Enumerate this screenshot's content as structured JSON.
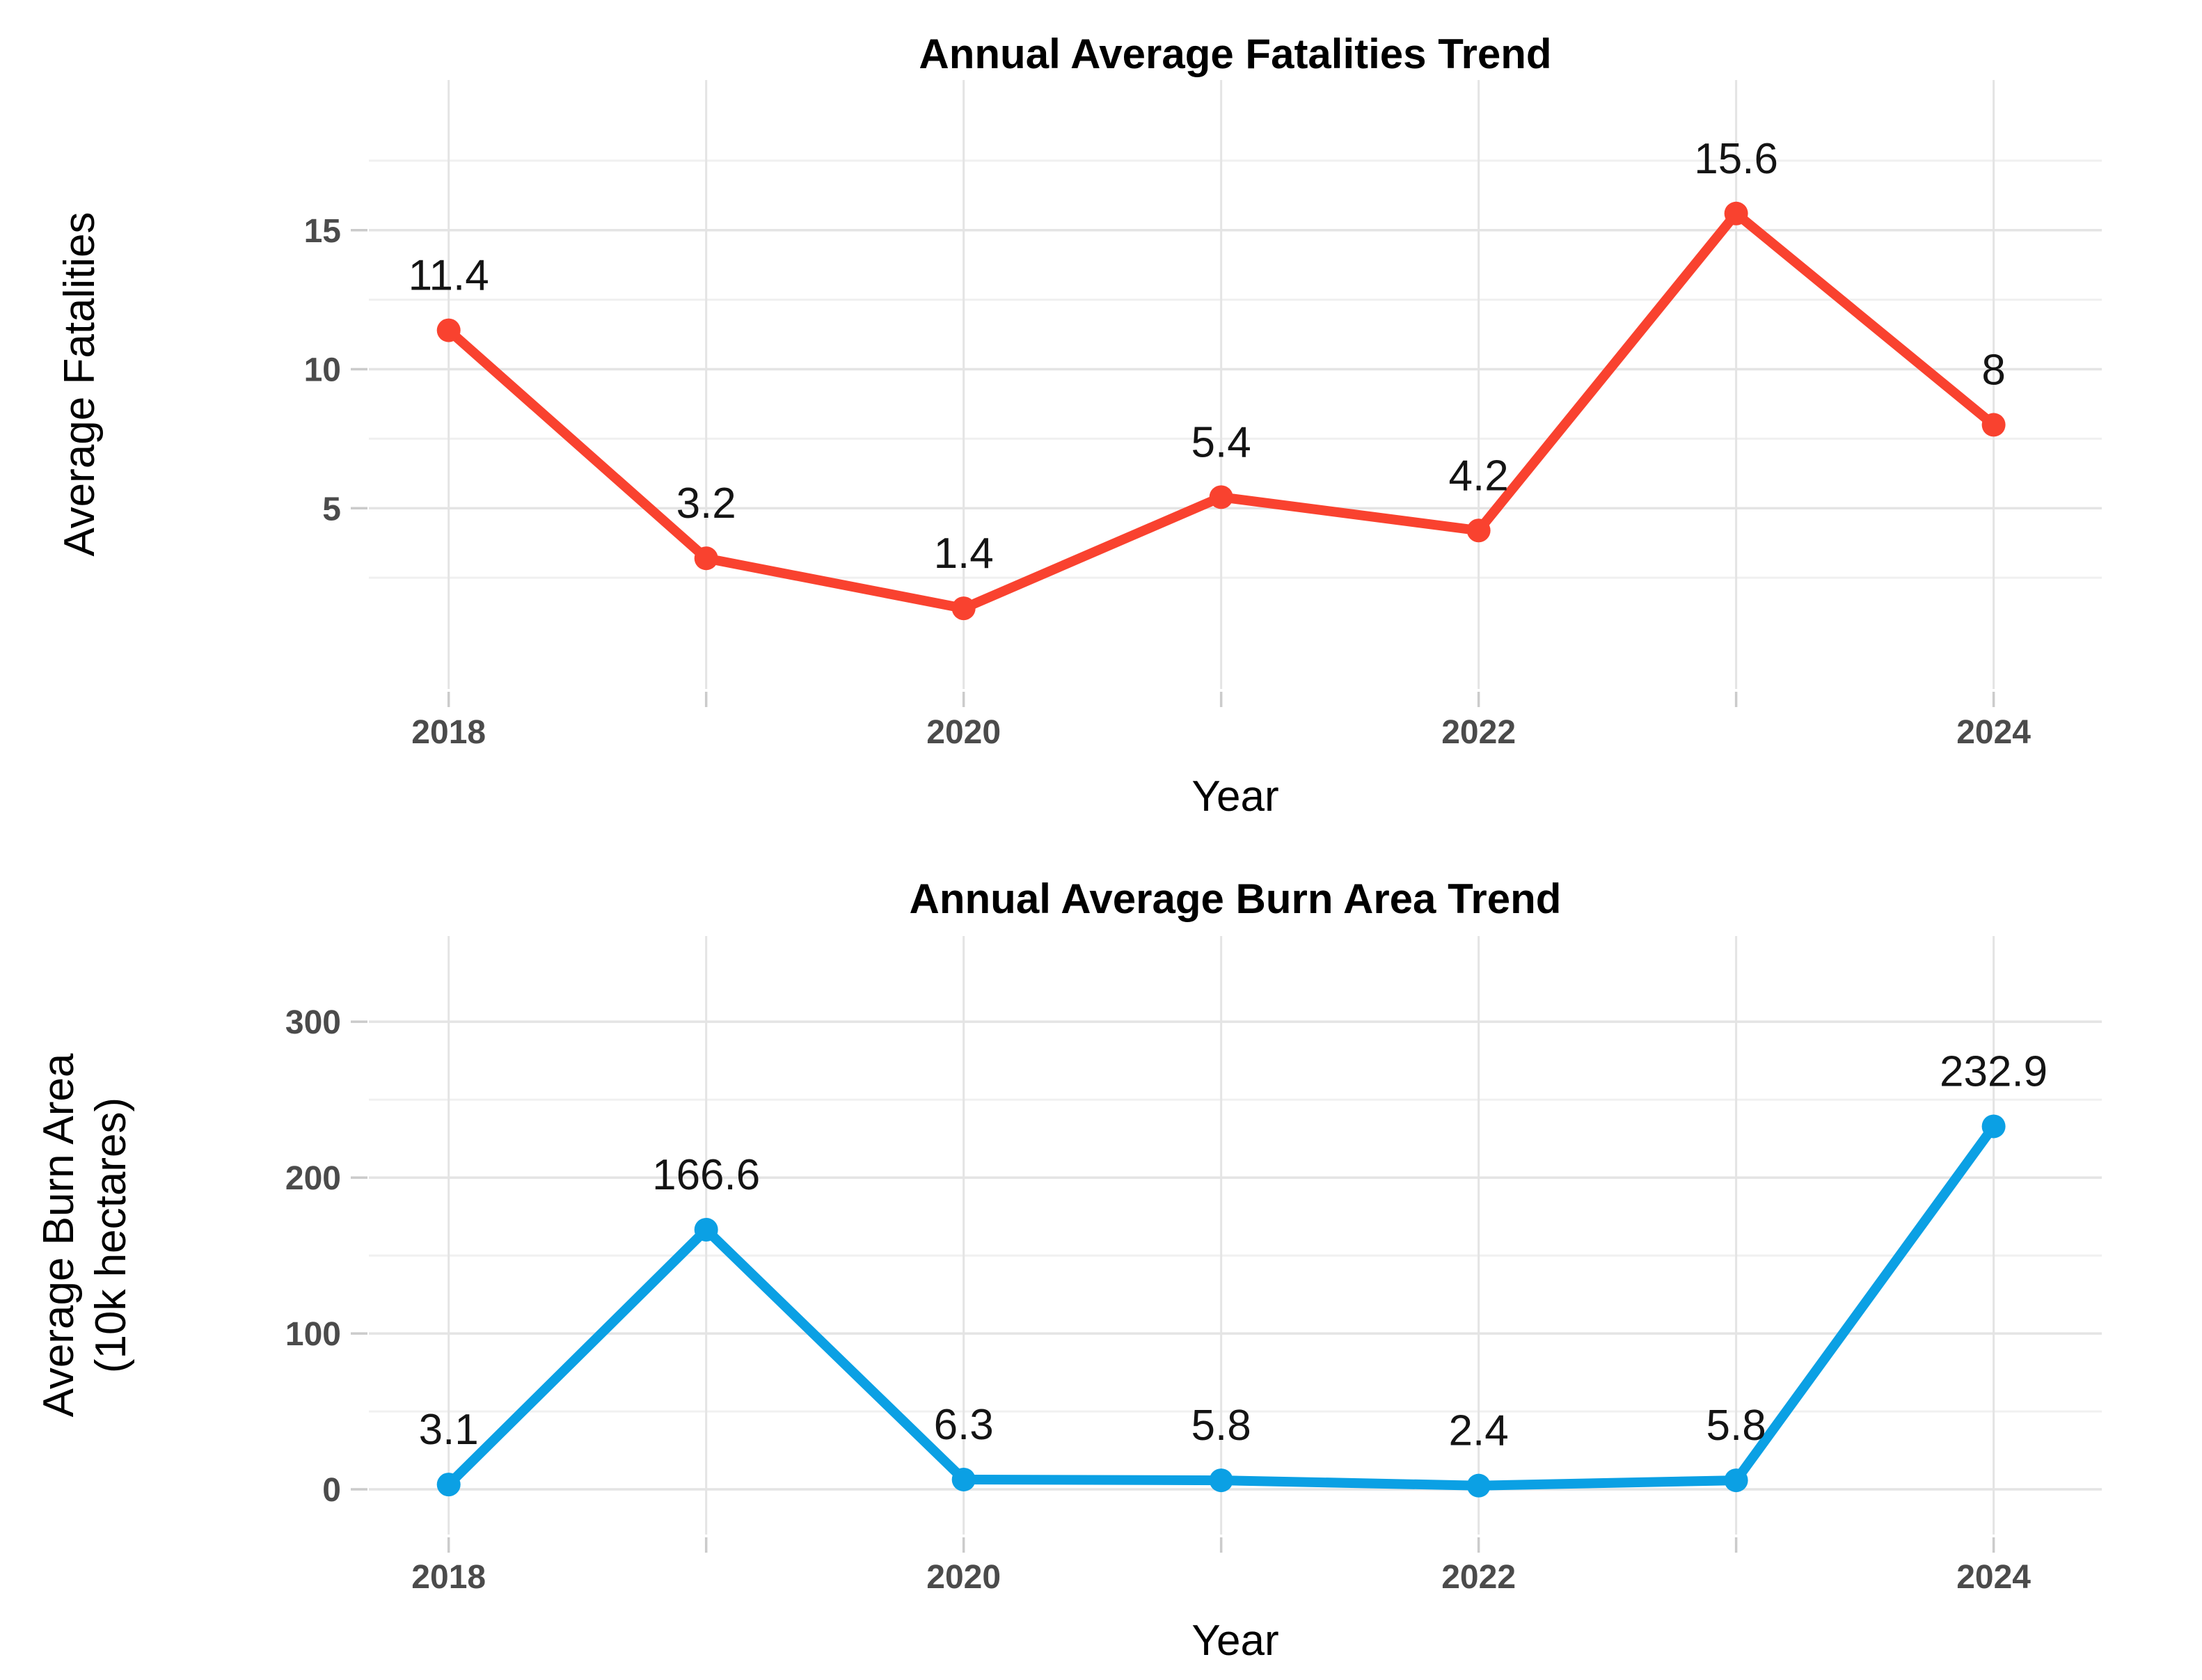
{
  "figure": {
    "background": "#FFFFFF",
    "grid_major_color": "#E4E4E4",
    "grid_minor_color": "#F0F0F0",
    "axis_tick_color": "#CBCBCB",
    "tick_label_color": "#4B4B4B",
    "data_label_color": "#141414"
  },
  "chart_data": [
    {
      "type": "line",
      "id": "fatalities",
      "title": "Annual Average Fatalities Trend",
      "xlabel": "Year",
      "ylabel_lines": [
        "Average Fatalities"
      ],
      "series_color": "#F9422F",
      "x": [
        2018,
        2019,
        2020,
        2021,
        2022,
        2023,
        2024
      ],
      "values": [
        11.4,
        3.2,
        1.4,
        5.4,
        4.2,
        15.6,
        8
      ],
      "point_labels": [
        "11.4",
        "3.2",
        "1.4",
        "5.4",
        "4.2",
        "15.6",
        "8"
      ],
      "xticks": [
        2018,
        2020,
        2022,
        2024
      ],
      "xtick_labels": [
        "2018",
        "2020",
        "2022",
        "2024"
      ],
      "yticks": [
        5,
        10,
        15
      ],
      "ytick_labels": [
        "5",
        "10",
        "15"
      ],
      "minor_yticks": [
        2.5,
        7.5,
        12.5,
        17.5
      ],
      "xlim": [
        2017.69,
        2024.42
      ],
      "ylim": [
        -1.5,
        20.4
      ],
      "grid": true,
      "legend": false
    },
    {
      "type": "line",
      "id": "burn-area",
      "title": "Annual Average Burn Area Trend",
      "xlabel": "Year",
      "ylabel_lines": [
        "Average Burn Area",
        "(10k hectares)"
      ],
      "series_color": "#0BA0E4",
      "x": [
        2018,
        2019,
        2020,
        2021,
        2022,
        2023,
        2024
      ],
      "values": [
        3.1,
        166.6,
        6.3,
        5.8,
        2.4,
        5.8,
        232.9
      ],
      "point_labels": [
        "3.1",
        "166.6",
        "6.3",
        "5.8",
        "2.4",
        "5.8",
        "232.9"
      ],
      "xticks": [
        2018,
        2020,
        2022,
        2024
      ],
      "xtick_labels": [
        "2018",
        "2020",
        "2022",
        "2024"
      ],
      "yticks": [
        0,
        100,
        200,
        300
      ],
      "ytick_labels": [
        "0",
        "100",
        "200",
        "300"
      ],
      "minor_yticks": [
        50,
        150,
        250
      ],
      "xlim": [
        2017.69,
        2024.42
      ],
      "ylim": [
        -29,
        355
      ],
      "grid": true,
      "legend": false
    }
  ]
}
